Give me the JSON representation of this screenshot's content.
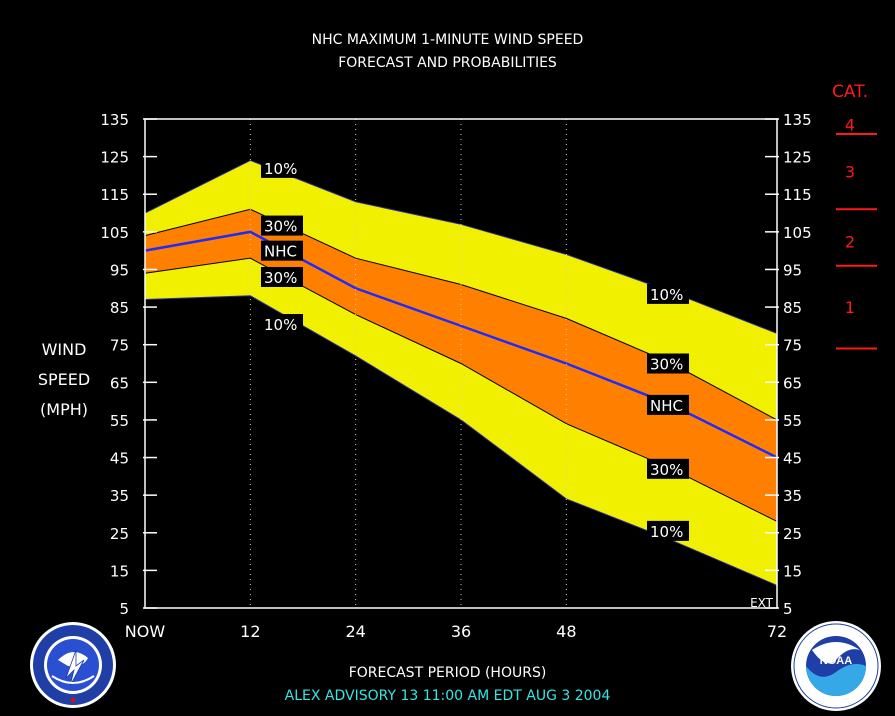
{
  "title": {
    "line1": "NHC MAXIMUM 1-MINUTE WIND SPEED",
    "line2": "FORECAST AND PROBABILITIES"
  },
  "y_axis_label": [
    "WIND",
    "SPEED",
    "(MPH)"
  ],
  "x_axis_label": "FORECAST PERIOD (HOURS)",
  "footer": "ALEX   ADVISORY  13 11:00  AM  EDT  AUG  3  2004",
  "category_scale": {
    "header": "CAT.",
    "categories": [
      "4",
      "3",
      "2",
      "1"
    ],
    "thresholds_mph": [
      131,
      111,
      96,
      74
    ],
    "color": "#ff1a1a"
  },
  "ext_label": "EXT",
  "colors": {
    "background": "#000000",
    "outer_band": "#f0f000",
    "inner_band": "#ff8000",
    "nhc_line": "#1f2aff",
    "category": "#ff1a1a",
    "footer": "#33e6e6"
  },
  "logos": {
    "left": {
      "icon": "nws-logo-icon",
      "text": "NATIONAL WEATHER SERVICE"
    },
    "right": {
      "icon": "noaa-logo-icon",
      "text": "NOAA"
    }
  },
  "chart_data": {
    "type": "area",
    "x_ticks": [
      "NOW",
      "12",
      "24",
      "36",
      "48",
      "72"
    ],
    "x_tick_values": [
      0,
      12,
      24,
      36,
      48,
      72
    ],
    "xlim": [
      0,
      72
    ],
    "ylim": [
      5,
      135
    ],
    "y_ticks": [
      5,
      15,
      25,
      35,
      45,
      55,
      65,
      75,
      85,
      95,
      105,
      115,
      125,
      135
    ],
    "grid": "vertical dotted at 12, 24, 36, 48",
    "x": [
      0,
      12,
      24,
      36,
      48,
      60,
      72
    ],
    "series": [
      {
        "name": "10%",
        "role": "upper",
        "values": [
          110,
          124,
          113,
          107,
          99,
          89,
          78
        ]
      },
      {
        "name": "30%",
        "role": "upper",
        "values": [
          104,
          111,
          98,
          91,
          82,
          70,
          55
        ]
      },
      {
        "name": "NHC",
        "role": "forecast",
        "values": [
          100,
          105,
          90,
          80,
          70,
          59,
          45
        ]
      },
      {
        "name": "30%",
        "role": "lower",
        "values": [
          94,
          98,
          83,
          70,
          54,
          42,
          28
        ]
      },
      {
        "name": "10%",
        "role": "lower",
        "values": [
          87,
          88,
          72,
          55,
          34,
          23,
          11
        ]
      }
    ]
  }
}
